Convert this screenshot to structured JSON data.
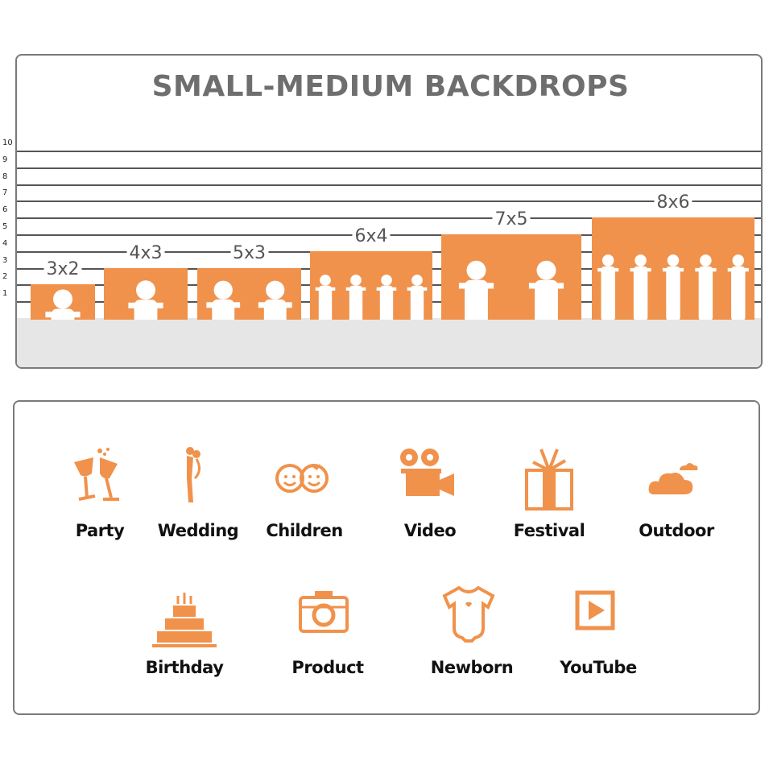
{
  "title": "SMALL-MEDIUM BACKDROPS",
  "scale": [
    "1",
    "2",
    "3",
    "4",
    "5",
    "6",
    "7",
    "8",
    "9",
    "10"
  ],
  "sizes": [
    {
      "label": "3x2",
      "height_units": 2,
      "subject": "crawling baby"
    },
    {
      "label": "4x3",
      "height_units": 3,
      "subject": "toddler with dog"
    },
    {
      "label": "5x3",
      "height_units": 3,
      "subject": "children reading"
    },
    {
      "label": "6x4",
      "height_units": 4,
      "subject": "four children"
    },
    {
      "label": "7x5",
      "height_units": 5,
      "subject": "children running with dogs"
    },
    {
      "label": "8x6",
      "height_units": 6,
      "subject": "group dancing"
    }
  ],
  "accent": "#f0924c",
  "uses": [
    {
      "label": "Party",
      "icon": "wine-glasses-icon"
    },
    {
      "label": "Wedding",
      "icon": "couple-icon"
    },
    {
      "label": "Children",
      "icon": "kids-faces-icon"
    },
    {
      "label": "Video",
      "icon": "film-camera-icon"
    },
    {
      "label": "Festival",
      "icon": "gift-box-icon"
    },
    {
      "label": "Outdoor",
      "icon": "cloud-icon"
    },
    {
      "label": "Birthday",
      "icon": "cake-icon"
    },
    {
      "label": "Product",
      "icon": "camera-icon"
    },
    {
      "label": "Newborn",
      "icon": "onesie-icon"
    },
    {
      "label": "YouTube",
      "icon": "play-icon"
    }
  ]
}
